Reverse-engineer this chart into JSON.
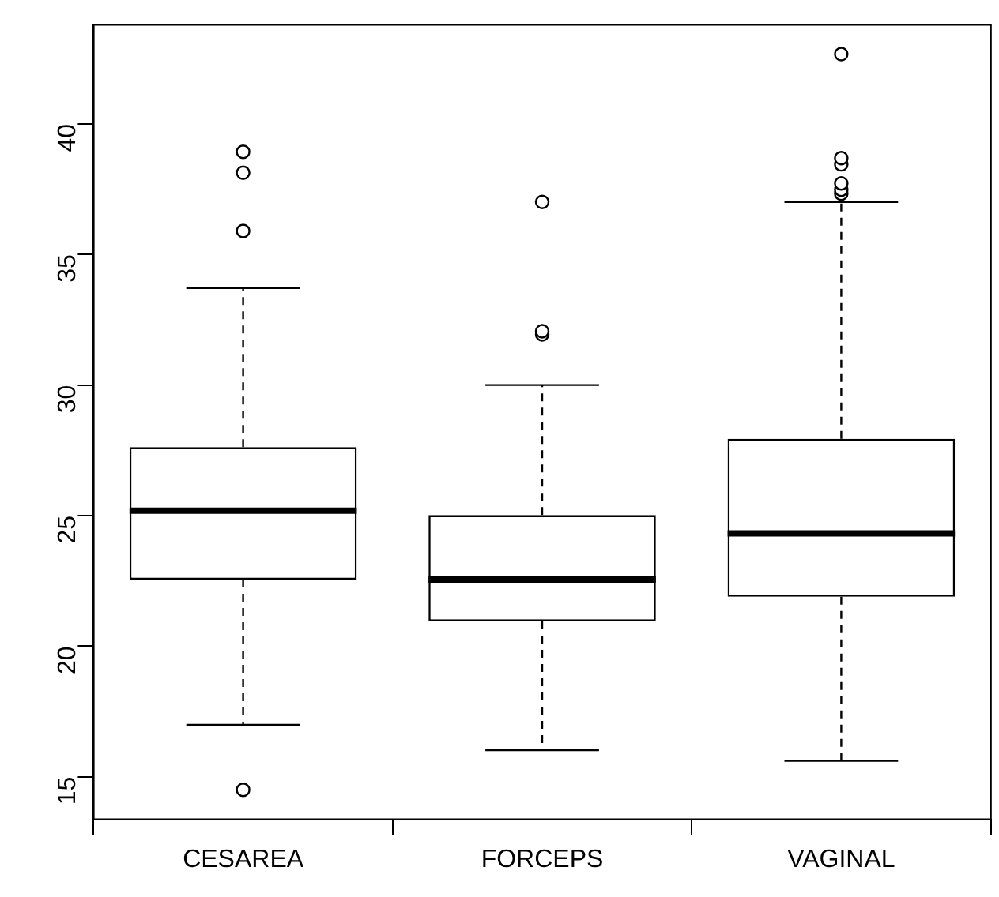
{
  "chart_data": {
    "type": "box",
    "categories": [
      "CESAREA",
      "FORCEPS",
      "VAGINAL"
    ],
    "boxes": [
      {
        "low": 16.99,
        "q1": 22.55,
        "median": 25.19,
        "q3": 27.62,
        "high": 33.71,
        "outliers": [
          14.5,
          35.9,
          38.13,
          38.93
        ]
      },
      {
        "low": 16.02,
        "q1": 20.95,
        "median": 22.55,
        "q3": 25.02,
        "high": 30.0,
        "outliers": [
          31.94,
          32.06,
          37.01
        ]
      },
      {
        "low": 15.61,
        "q1": 21.89,
        "median": 24.32,
        "q3": 27.94,
        "high": 37.01,
        "outliers": [
          37.33,
          37.48,
          37.72,
          38.45,
          38.69,
          42.67
        ]
      }
    ],
    "color": "#000000",
    "ylim": [
      13.37,
      43.8
    ],
    "yticks": [
      15,
      20,
      25,
      30,
      35,
      40
    ],
    "grid": false,
    "legend": false
  }
}
